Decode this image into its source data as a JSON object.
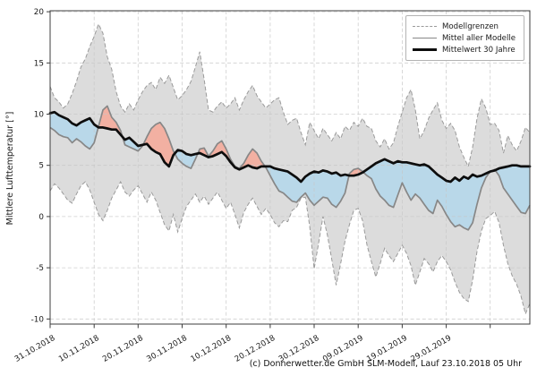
{
  "chart_data": {
    "type": "area",
    "title": "",
    "ylabel": "Mittlere Lufttemperatur [°]",
    "caption": "(c) Donnerwetter.de GmbH SLM-Modell, Lauf 23.10.2018 05 Uhr",
    "legend": [
      {
        "label": "Modellgrenzen",
        "style": "dashed-gray"
      },
      {
        "label": "Mittel aller Modelle",
        "style": "solid-gray"
      },
      {
        "label": "Mittelwert 30 Jahre",
        "style": "thick-black"
      }
    ],
    "grid": true,
    "legend_position": "top-right",
    "ylim": [
      -10.5,
      20.1
    ],
    "y_ticks": [
      20,
      15,
      10,
      5,
      0,
      -5,
      -10
    ],
    "x_tick_labels": [
      "31.10.2018",
      "10.11.2018",
      "20.11.2018",
      "30.11.2018",
      "10.12.2018",
      "20.12.2018",
      "30.12.2018",
      "09.01.2019",
      "19.01.2019",
      "29.01.2019"
    ],
    "x_tick_days": [
      0,
      10,
      20,
      30,
      40,
      50,
      60,
      70,
      80,
      90
    ],
    "x_extra_gridline_days": [
      100
    ],
    "days_total": 109,
    "x_start_label": "31.10.2018",
    "series": [
      {
        "name": "Modellgrenzen (obere Grenze)",
        "values": [
          12.7,
          11.6,
          11.2,
          10.6,
          11.0,
          12.0,
          13.2,
          14.6,
          15.4,
          16.6,
          17.6,
          18.8,
          17.9,
          15.6,
          14.4,
          12.2,
          10.8,
          10.2,
          11.0,
          10.4,
          11.4,
          12.2,
          12.8,
          13.1,
          12.4,
          13.6,
          13.0,
          13.8,
          12.6,
          11.4,
          11.8,
          12.4,
          13.2,
          14.6,
          16.1,
          13.4,
          10.4,
          10.2,
          10.8,
          11.2,
          10.6,
          11.0,
          11.6,
          10.4,
          11.4,
          12.2,
          12.8,
          11.8,
          11.2,
          10.6,
          11.0,
          11.4,
          11.6,
          10.2,
          9.0,
          9.4,
          9.6,
          8.2,
          7.0,
          9.2,
          8.4,
          7.6,
          8.6,
          8.0,
          7.4,
          8.2,
          7.6,
          8.8,
          8.4,
          9.2,
          8.8,
          9.6,
          8.8,
          8.6,
          7.4,
          6.8,
          7.6,
          6.6,
          7.2,
          8.8,
          10.2,
          11.6,
          12.4,
          10.4,
          7.6,
          8.4,
          9.6,
          10.4,
          11.1,
          9.4,
          8.6,
          9.1,
          8.4,
          6.8,
          5.8,
          4.9,
          6.8,
          9.6,
          11.5,
          10.6,
          9.0,
          9.1,
          8.4,
          6.2,
          7.9,
          7.0,
          6.4,
          7.4,
          8.7,
          8.2
        ]
      },
      {
        "name": "Modellgrenzen (untere Grenze)",
        "values": [
          2.5,
          3.2,
          2.8,
          2.2,
          1.6,
          1.3,
          2.2,
          3.0,
          3.4,
          2.6,
          1.4,
          0.2,
          -0.4,
          0.6,
          1.8,
          2.6,
          3.4,
          2.4,
          2.0,
          2.6,
          3.0,
          2.2,
          1.4,
          2.4,
          1.6,
          0.4,
          -0.8,
          -1.4,
          0.2,
          -1.5,
          -0.2,
          1.0,
          1.6,
          2.2,
          1.4,
          2.0,
          1.2,
          1.8,
          2.4,
          1.6,
          0.8,
          1.4,
          0.2,
          -1.1,
          0.4,
          1.2,
          1.8,
          1.0,
          0.2,
          0.8,
          0.2,
          -0.6,
          -1.0,
          -0.4,
          -0.5,
          0.6,
          0.9,
          1.8,
          1.9,
          -1.0,
          -5.1,
          -2.6,
          0.0,
          -1.8,
          -4.2,
          -6.7,
          -4.6,
          -2.4,
          -0.8,
          0.6,
          0.8,
          -0.4,
          -2.8,
          -4.4,
          -5.9,
          -4.6,
          -3.1,
          -3.8,
          -4.4,
          -3.6,
          -2.8,
          -3.6,
          -4.8,
          -6.7,
          -5.4,
          -4.1,
          -4.6,
          -5.4,
          -4.4,
          -3.8,
          -4.4,
          -5.2,
          -6.4,
          -7.4,
          -8.0,
          -8.3,
          -6.2,
          -3.4,
          -1.4,
          -0.2,
          0.1,
          0.5,
          -0.6,
          -2.8,
          -4.6,
          -5.8,
          -6.6,
          -7.8,
          -9.5,
          -8.5
        ]
      },
      {
        "name": "Mittel aller Modelle",
        "values": [
          8.7,
          8.4,
          8.0,
          7.8,
          7.7,
          7.2,
          7.6,
          7.3,
          6.9,
          6.6,
          7.2,
          8.8,
          10.4,
          10.8,
          9.7,
          9.2,
          8.4,
          7.0,
          6.8,
          6.6,
          6.4,
          6.9,
          7.8,
          8.6,
          9.0,
          9.2,
          8.6,
          7.6,
          6.4,
          5.6,
          5.2,
          4.9,
          4.7,
          5.6,
          6.6,
          6.7,
          5.9,
          6.4,
          7.1,
          7.4,
          6.6,
          5.6,
          4.9,
          4.7,
          5.2,
          6.0,
          6.6,
          6.2,
          5.4,
          4.8,
          4.0,
          3.2,
          2.5,
          2.3,
          1.9,
          1.5,
          1.4,
          1.9,
          2.3,
          1.6,
          1.1,
          1.5,
          1.9,
          1.8,
          1.2,
          0.9,
          1.5,
          2.3,
          4.2,
          4.6,
          4.7,
          4.4,
          4.0,
          3.7,
          2.7,
          2.0,
          1.6,
          1.1,
          0.9,
          2.1,
          3.3,
          2.4,
          1.6,
          2.2,
          1.8,
          1.2,
          0.6,
          0.3,
          1.6,
          1.0,
          0.2,
          -0.5,
          -1.0,
          -0.8,
          -1.1,
          -1.3,
          -0.6,
          1.2,
          2.8,
          3.8,
          4.4,
          4.6,
          4.0,
          2.8,
          2.2,
          1.6,
          1.0,
          0.4,
          0.3,
          1.1
        ]
      },
      {
        "name": "Mittelwert 30 Jahre",
        "values": [
          10.1,
          10.2,
          9.9,
          9.7,
          9.5,
          9.1,
          8.9,
          9.2,
          9.4,
          9.6,
          9.0,
          8.7,
          8.7,
          8.6,
          8.5,
          8.5,
          8.0,
          7.5,
          7.7,
          7.3,
          6.9,
          7.0,
          7.1,
          6.6,
          6.3,
          6.1,
          5.3,
          4.9,
          6.0,
          6.5,
          6.4,
          6.1,
          6.0,
          6.1,
          6.2,
          6.0,
          5.8,
          5.9,
          6.1,
          6.3,
          5.9,
          5.3,
          4.8,
          4.6,
          4.8,
          5.0,
          4.8,
          4.7,
          4.9,
          4.9,
          4.9,
          4.7,
          4.6,
          4.5,
          4.4,
          4.1,
          3.8,
          3.4,
          3.9,
          4.2,
          4.4,
          4.3,
          4.5,
          4.4,
          4.2,
          4.3,
          4.0,
          4.1,
          4.0,
          4.0,
          4.1,
          4.3,
          4.6,
          4.9,
          5.2,
          5.4,
          5.6,
          5.4,
          5.2,
          5.4,
          5.3,
          5.3,
          5.2,
          5.1,
          5.0,
          5.1,
          4.9,
          4.5,
          4.1,
          3.8,
          3.5,
          3.4,
          3.8,
          3.5,
          3.9,
          3.7,
          4.1,
          3.9,
          4.0,
          4.2,
          4.4,
          4.5,
          4.7,
          4.8,
          4.9,
          5.0,
          5.0,
          4.9,
          4.9,
          4.9
        ]
      }
    ],
    "colors": {
      "band_fill": "#dcdcdc",
      "band_edge": "#9a9a9a",
      "warm_fill": "#f2b0a2",
      "cold_fill": "#b9d8e9",
      "model_mean_line": "#878787",
      "climate_mean_line": "#0d0d0d",
      "grid": "#c7c7c7",
      "spine": "#3c3c3c",
      "tick_text": "#1a1a1a"
    }
  }
}
